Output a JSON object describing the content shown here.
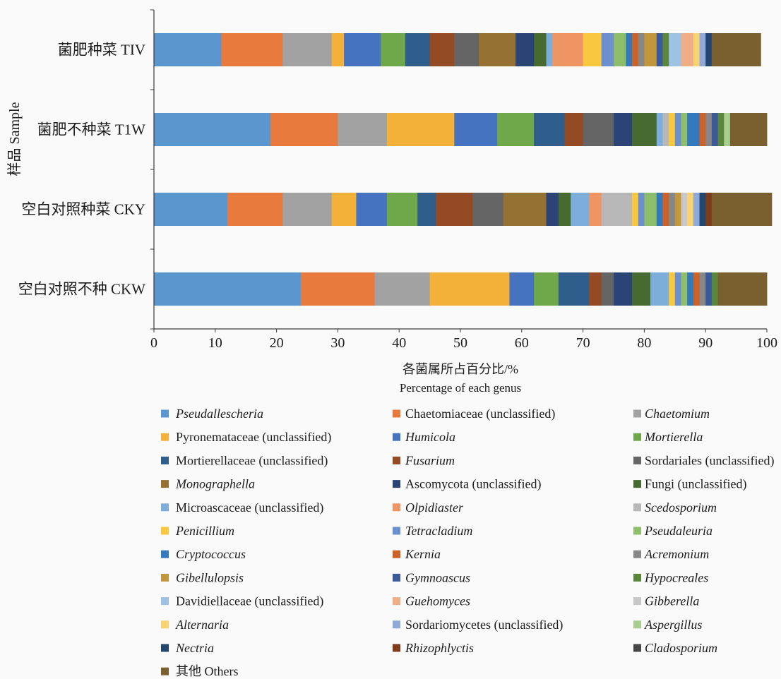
{
  "chart_data": {
    "type": "bar",
    "orientation": "horizontal",
    "stacked": true,
    "categories": [
      "菌肥种菜 TIV",
      "菌肥不种菜 T1W",
      "空白对照种菜 CKY",
      "空白对照不种 CKW"
    ],
    "xlabel": [
      "各菌属所占百分比/%",
      "Percentage of each genus"
    ],
    "ylabel": "样品 Sample",
    "xlim": [
      0,
      100
    ],
    "xticks": [
      0,
      10,
      20,
      30,
      40,
      50,
      60,
      70,
      80,
      90,
      100
    ],
    "grid": false,
    "legend": "bottom",
    "series": [
      {
        "name": "Pseudallescheria",
        "italic": true,
        "color": "#5B96CE",
        "values": [
          11,
          19,
          12,
          24
        ]
      },
      {
        "name": "Chaetomiaceae (unclassified)",
        "italic": false,
        "color": "#E97A3E",
        "values": [
          10,
          11,
          9,
          12
        ]
      },
      {
        "name": "Chaetomium",
        "italic": true,
        "color": "#A2A2A2",
        "values": [
          8,
          8,
          8,
          9
        ]
      },
      {
        "name": "Pyronemataceae (unclassified)",
        "italic": false,
        "color": "#F4B13A",
        "values": [
          2,
          11,
          4,
          13
        ]
      },
      {
        "name": "Humicola",
        "italic": true,
        "color": "#4673C0",
        "values": [
          6,
          7,
          5,
          4
        ]
      },
      {
        "name": "Mortierella",
        "italic": true,
        "color": "#6FA84A",
        "values": [
          4,
          6,
          5,
          4
        ]
      },
      {
        "name": "Mortierellaceae (unclassified)",
        "italic": false,
        "color": "#2F5D8C",
        "values": [
          4,
          5,
          3,
          5
        ]
      },
      {
        "name": "Fusarium",
        "italic": true,
        "color": "#944A22",
        "values": [
          4,
          3,
          6,
          2
        ]
      },
      {
        "name": "Sordariales (unclassified)",
        "italic": false,
        "color": "#656565",
        "values": [
          4,
          5,
          5,
          2
        ]
      },
      {
        "name": "Monographella",
        "italic": true,
        "color": "#957234",
        "values": [
          6,
          0,
          7,
          0
        ]
      },
      {
        "name": "Ascomycota (unclassified)",
        "italic": false,
        "color": "#2B4475",
        "values": [
          3,
          3,
          2,
          3
        ]
      },
      {
        "name": "Fungi (unclassified)",
        "italic": false,
        "color": "#466A2F",
        "values": [
          2,
          4,
          2,
          3
        ]
      },
      {
        "name": "Microascaceae (unclassified)",
        "italic": false,
        "color": "#7DAEDB",
        "values": [
          1,
          1,
          3,
          3
        ]
      },
      {
        "name": "Olpidiaster",
        "italic": true,
        "color": "#EE9563",
        "values": [
          5,
          0,
          2,
          0
        ]
      },
      {
        "name": "Scedosporium",
        "italic": true,
        "color": "#B8B8B8",
        "values": [
          0,
          1,
          5,
          0
        ]
      },
      {
        "name": "Penicillium",
        "italic": true,
        "color": "#F9C83E",
        "values": [
          3,
          1,
          1,
          1
        ]
      },
      {
        "name": "Tetracladium",
        "italic": true,
        "color": "#6C8FCD",
        "values": [
          2,
          1,
          1,
          1
        ]
      },
      {
        "name": "Pseudaleuria",
        "italic": true,
        "color": "#8DBE6C",
        "values": [
          2,
          1,
          2,
          1
        ]
      },
      {
        "name": "Cryptococcus",
        "italic": true,
        "color": "#3479BC",
        "values": [
          1,
          2,
          1,
          1
        ]
      },
      {
        "name": "Kernia",
        "italic": true,
        "color": "#CC6228",
        "values": [
          1,
          1,
          1,
          1
        ]
      },
      {
        "name": "Acremonium",
        "italic": true,
        "color": "#878787",
        "values": [
          1,
          1,
          1,
          1
        ]
      },
      {
        "name": "Gibellulopsis",
        "italic": true,
        "color": "#C2963A",
        "values": [
          2,
          0,
          1,
          0
        ]
      },
      {
        "name": "Gymnoascus",
        "italic": true,
        "color": "#3A5A9A",
        "values": [
          1,
          1,
          0,
          1
        ]
      },
      {
        "name": "Hypocreales",
        "italic": true,
        "color": "#5B873D",
        "values": [
          1,
          1,
          0,
          1
        ]
      },
      {
        "name": "Davidiellaceae (unclassified)",
        "italic": false,
        "color": "#9DC2E3",
        "values": [
          2,
          0,
          0,
          0
        ]
      },
      {
        "name": "Guehomyces",
        "italic": true,
        "color": "#F0AE87",
        "values": [
          2,
          0,
          0,
          0
        ]
      },
      {
        "name": "Gibberella",
        "italic": true,
        "color": "#C8C8C8",
        "values": [
          0,
          0,
          1,
          0
        ]
      },
      {
        "name": "Alternaria",
        "italic": true,
        "color": "#F8D372",
        "values": [
          1,
          0,
          1,
          0
        ]
      },
      {
        "name": "Sordariomycetes (unclassified)",
        "italic": false,
        "color": "#90A9D8",
        "values": [
          1,
          0,
          1,
          0
        ]
      },
      {
        "name": "Aspergillus",
        "italic": true,
        "color": "#A7CE8F",
        "values": [
          0,
          1,
          0,
          0
        ]
      },
      {
        "name": "Nectria",
        "italic": true,
        "color": "#24476F",
        "values": [
          1,
          0,
          1,
          0
        ]
      },
      {
        "name": "Rhizophlyctis",
        "italic": true,
        "color": "#7E3D1A",
        "values": [
          0,
          0,
          1,
          0
        ]
      },
      {
        "name": "Cladosporium",
        "italic": true,
        "color": "#474747",
        "values": [
          0,
          0,
          0,
          0
        ]
      },
      {
        "name": "其他 Others",
        "italic": false,
        "color": "#7A5F2F",
        "values": [
          8,
          6,
          9.8,
          8
        ]
      }
    ]
  }
}
